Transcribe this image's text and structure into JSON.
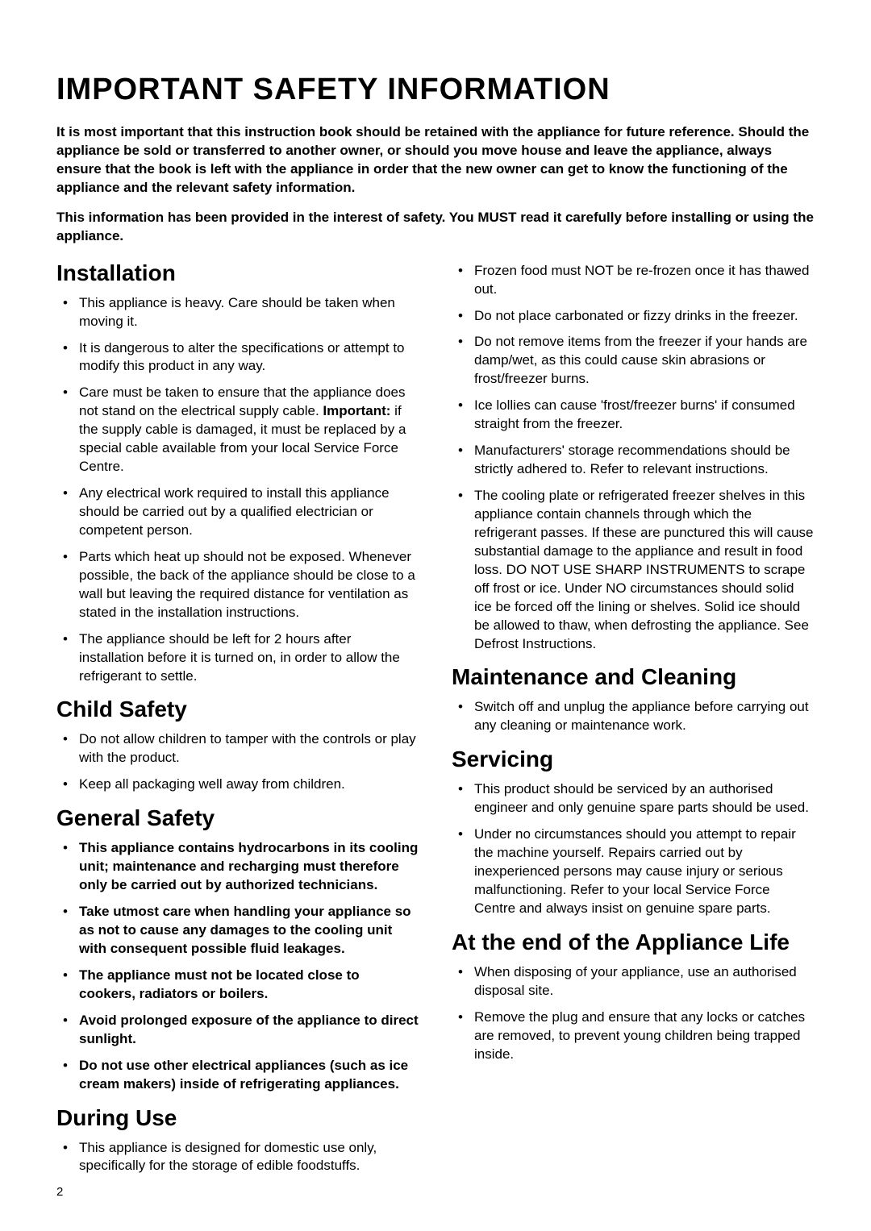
{
  "page_number": "2",
  "title": "IMPORTANT SAFETY INFORMATION",
  "intro": [
    "It is most important that this instruction book should be retained with the appliance for future reference. Should the appliance be sold or transferred to another owner, or should you move house and leave the appliance, always ensure that the book is left with the appliance in order that the new owner can get to know the functioning of the appliance and the relevant safety information.",
    "This information has been provided in the interest of safety. You MUST read it carefully before installing or using the appliance."
  ],
  "left": {
    "installation": {
      "heading": "Installation",
      "items": [
        {
          "text": "This appliance is heavy. Care should be taken when moving it."
        },
        {
          "text": "It is dangerous to alter the specifications or attempt to modify this product in any way."
        },
        {
          "pre": "Care must be taken to ensure that the appliance does not stand on the electrical supply cable. ",
          "bold": "Important:",
          "post": " if the supply cable is damaged, it must be replaced by a special cable available from your local Service Force Centre."
        },
        {
          "text": "Any electrical work required to install this appliance should be carried out by a qualified electrician or competent person."
        },
        {
          "text": "Parts which heat up should not be exposed. Whenever possible, the back of the appliance should be close to a wall but leaving the required distance for ventilation as stated in the installation instructions."
        },
        {
          "text": "The appliance should be left for 2 hours after installation before it is turned on, in order to allow the refrigerant to settle."
        }
      ]
    },
    "child": {
      "heading": "Child Safety",
      "items": [
        {
          "text": "Do not allow children to tamper with the controls or play with the product."
        },
        {
          "text": "Keep all packaging well away from children."
        }
      ]
    },
    "general": {
      "heading": "General Safety",
      "items": [
        {
          "text": "This appliance contains hydrocarbons in its cooling unit; maintenance and recharging must therefore only be carried out by authorized technicians.",
          "allbold": true
        },
        {
          "text": "Take utmost care when handling your appliance so as not to cause any damages to the cooling unit with consequent possible fluid leakages.",
          "allbold": true
        },
        {
          "text": "The appliance must not be located close to cookers, radiators or boilers.",
          "allbold": true
        },
        {
          "text": "Avoid prolonged exposure of the appliance to direct sunlight.",
          "allbold": true
        },
        {
          "text": "Do not use other electrical appliances (such as ice cream makers) inside of refrigerating appliances.",
          "allbold": true
        }
      ]
    },
    "during": {
      "heading": "During Use",
      "items": [
        {
          "text": "This appliance is designed for domestic use only, specifically for the storage of edible foodstuffs."
        }
      ]
    }
  },
  "right": {
    "during_cont": {
      "items": [
        {
          "text": "Frozen food must NOT be re-frozen once it has thawed out."
        },
        {
          "text": "Do not place carbonated or fizzy drinks in the freezer."
        },
        {
          "text": "Do not remove items from the freezer if your hands are damp/wet, as this could cause skin abrasions or frost/freezer burns."
        },
        {
          "text": "Ice lollies can cause 'frost/freezer burns' if consumed straight from the freezer."
        },
        {
          "text": "Manufacturers' storage recommendations should be strictly adhered to. Refer to relevant instructions."
        },
        {
          "text": "The cooling plate or refrigerated freezer shelves in this appliance contain channels through which the refrigerant passes. If these are punctured this will cause substantial damage to the appliance and result in food loss. DO NOT USE SHARP INSTRUMENTS to scrape off frost or ice. Under NO circumstances should solid ice be forced off the lining or shelves. Solid ice should be allowed to thaw, when defrosting the appliance. See Defrost Instructions."
        }
      ]
    },
    "maintenance": {
      "heading": "Maintenance and Cleaning",
      "items": [
        {
          "text": "Switch off and unplug the appliance before carrying out any cleaning or maintenance work."
        }
      ]
    },
    "servicing": {
      "heading": "Servicing",
      "items": [
        {
          "text": "This product should be serviced by an authorised engineer and only genuine spare parts should be used."
        },
        {
          "text": "Under no circumstances should you attempt to repair the machine yourself. Repairs carried out by inexperienced persons may cause injury or serious malfunctioning. Refer to your local Service Force Centre and always insist on genuine spare parts."
        }
      ]
    },
    "endlife": {
      "heading": "At the end of the Appliance Life",
      "items": [
        {
          "text": "When disposing of your appliance, use an authorised disposal site."
        },
        {
          "text": "Remove the plug and ensure that any locks or catches are removed, to prevent young children being trapped inside."
        }
      ]
    }
  },
  "colors": {
    "text": "#000000",
    "background": "#ffffff"
  },
  "typography": {
    "title_fontsize": 38,
    "heading_fontsize": 28,
    "body_fontsize": 17,
    "pagenum_fontsize": 15,
    "font_family": "Arial"
  }
}
